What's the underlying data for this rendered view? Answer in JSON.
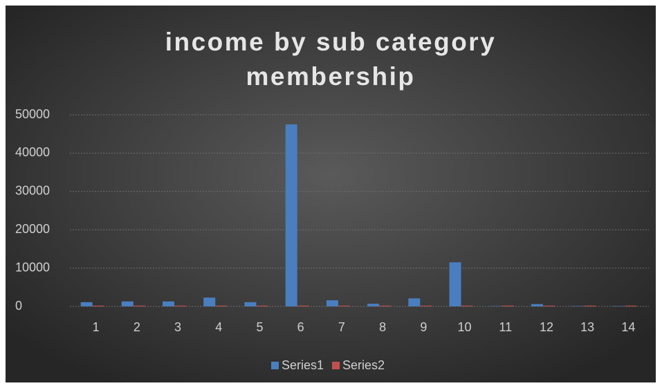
{
  "chart_data": {
    "type": "bar",
    "title": "income by sub category membership",
    "categories": [
      "1",
      "2",
      "3",
      "4",
      "5",
      "6",
      "7",
      "8",
      "9",
      "10",
      "11",
      "12",
      "13",
      "14"
    ],
    "series": [
      {
        "name": "Series1",
        "color": "#4a7ebf",
        "values": [
          1100,
          1300,
          1300,
          2300,
          1100,
          47500,
          1600,
          700,
          2100,
          11500,
          100,
          600,
          100,
          100
        ]
      },
      {
        "name": "Series2",
        "color": "#c0504d",
        "values": [
          200,
          200,
          200,
          200,
          200,
          200,
          200,
          200,
          200,
          200,
          200,
          200,
          200,
          200
        ]
      }
    ],
    "ylim": [
      0,
      50000
    ],
    "yticks": [
      0,
      10000,
      20000,
      30000,
      40000,
      50000
    ],
    "grid": true,
    "legend": "bottom"
  }
}
